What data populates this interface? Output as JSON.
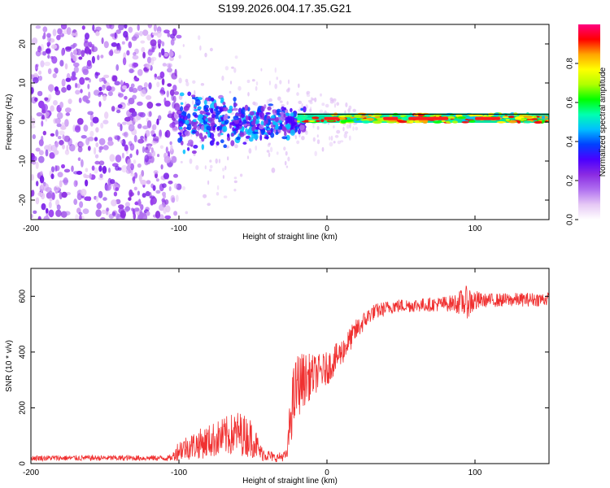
{
  "title": "S199.2026.004.17.35.G21",
  "chart_data": [
    {
      "type": "heatmap",
      "name": "spectrogram",
      "xlabel": "Height of straight line (km)",
      "ylabel": "Frequency (Hz)",
      "xlim": [
        -200,
        150
      ],
      "ylim": [
        -25,
        25
      ],
      "xticks": [
        -200,
        -100,
        0,
        100
      ],
      "yticks": [
        -20,
        -10,
        0,
        10,
        20
      ],
      "colorbar": {
        "label": "Normalized spectral amplitude",
        "range": [
          0,
          1
        ],
        "ticks": [
          0.0,
          0.2,
          0.4,
          0.6,
          0.8
        ],
        "tick_labels": [
          "0.0",
          "0.2",
          "0.4",
          "0.6",
          "0.8"
        ],
        "colors": [
          "#ffffff",
          "#e6c8f5",
          "#b070f0",
          "#8a2be2",
          "#4b00ff",
          "#0040ff",
          "#00bfff",
          "#00ffb0",
          "#00ff00",
          "#b0ff00",
          "#ffff00",
          "#ffa500",
          "#ff0000",
          "#ff0080"
        ]
      },
      "regions": [
        {
          "x_range": [
            -200,
            -100
          ],
          "description_value": "broadband noise",
          "amplitude": 0.05
        },
        {
          "x_range": [
            -100,
            -20
          ],
          "center_freq": 0,
          "spread_hz": 8,
          "amplitude": 0.2
        },
        {
          "x_range": [
            -20,
            150
          ],
          "center_freq": 1,
          "spread_hz": 2,
          "amplitude": 0.9
        }
      ]
    },
    {
      "type": "line",
      "name": "snr",
      "xlabel": "Height of straight line (km)",
      "ylabel": "SNR (10 * v/v)",
      "xlim": [
        -200,
        150
      ],
      "ylim": [
        0,
        700
      ],
      "xticks": [
        -200,
        -100,
        0,
        100
      ],
      "yticks": [
        0,
        200,
        400,
        600
      ],
      "color": "#f03030",
      "profile": [
        {
          "x": -200,
          "y": 20,
          "noise": 10
        },
        {
          "x": -105,
          "y": 20,
          "noise": 10
        },
        {
          "x": -100,
          "y": 50,
          "noise": 40
        },
        {
          "x": -80,
          "y": 80,
          "noise": 60
        },
        {
          "x": -60,
          "y": 110,
          "noise": 80
        },
        {
          "x": -50,
          "y": 90,
          "noise": 70
        },
        {
          "x": -45,
          "y": 40,
          "noise": 30
        },
        {
          "x": -35,
          "y": 20,
          "noise": 15
        },
        {
          "x": -27,
          "y": 30,
          "noise": 20
        },
        {
          "x": -24,
          "y": 200,
          "noise": 120
        },
        {
          "x": -20,
          "y": 280,
          "noise": 120
        },
        {
          "x": -16,
          "y": 300,
          "noise": 100
        },
        {
          "x": -8,
          "y": 320,
          "noise": 70
        },
        {
          "x": 0,
          "y": 340,
          "noise": 60
        },
        {
          "x": 10,
          "y": 400,
          "noise": 50
        },
        {
          "x": 20,
          "y": 480,
          "noise": 40
        },
        {
          "x": 30,
          "y": 540,
          "noise": 30
        },
        {
          "x": 45,
          "y": 565,
          "noise": 25
        },
        {
          "x": 70,
          "y": 570,
          "noise": 25
        },
        {
          "x": 85,
          "y": 575,
          "noise": 30
        },
        {
          "x": 95,
          "y": 580,
          "noise": 60
        },
        {
          "x": 105,
          "y": 585,
          "noise": 25
        },
        {
          "x": 150,
          "y": 590,
          "noise": 25
        }
      ]
    }
  ]
}
